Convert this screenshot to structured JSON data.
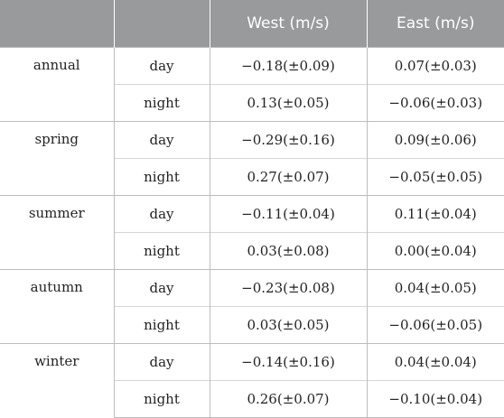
{
  "table": {
    "headers": [
      "",
      "",
      "West (m/s)",
      "East (m/s)"
    ],
    "groups": [
      {
        "season": "annual",
        "rows": [
          {
            "time": "day",
            "west": "−0.18(±0.09)",
            "east": "0.07(±0.03)"
          },
          {
            "time": "night",
            "west": "0.13(±0.05)",
            "east": "−0.06(±0.03)"
          }
        ]
      },
      {
        "season": "spring",
        "rows": [
          {
            "time": "day",
            "west": "−0.29(±0.16)",
            "east": "0.09(±0.06)"
          },
          {
            "time": "night",
            "west": "0.27(±0.07)",
            "east": "−0.05(±0.05)"
          }
        ]
      },
      {
        "season": "summer",
        "rows": [
          {
            "time": "day",
            "west": "−0.11(±0.04)",
            "east": "0.11(±0.04)"
          },
          {
            "time": "night",
            "west": "0.03(±0.08)",
            "east": "0.00(±0.04)"
          }
        ]
      },
      {
        "season": "autumn",
        "rows": [
          {
            "time": "day",
            "west": "−0.23(±0.08)",
            "east": "0.04(±0.05)"
          },
          {
            "time": "night",
            "west": "0.03(±0.05)",
            "east": "−0.06(±0.05)"
          }
        ]
      },
      {
        "season": "winter",
        "rows": [
          {
            "time": "day",
            "west": "−0.14(±0.16)",
            "east": "0.04(±0.04)"
          },
          {
            "time": "night",
            "west": "0.26(±0.07)",
            "east": "−0.10(±0.04)"
          }
        ]
      }
    ]
  }
}
